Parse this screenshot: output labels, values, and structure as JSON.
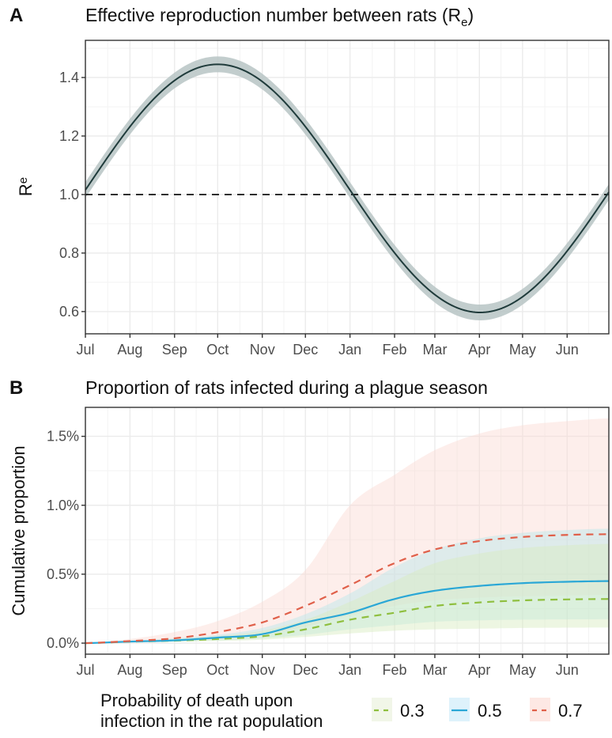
{
  "chart_data": [
    {
      "panel": "A",
      "type": "line",
      "title": "Effective reproduction number between rats (R",
      "title_subscript": "e",
      "title_suffix": ")",
      "xlabel": "",
      "ylabel": "R",
      "ylabel_subscript": "e",
      "x_categories": [
        "Jul",
        "Aug",
        "Sep",
        "Oct",
        "Nov",
        "Dec",
        "Jan",
        "Feb",
        "Mar",
        "Apr",
        "May",
        "Jun"
      ],
      "x_tick_days": [
        0,
        31,
        62,
        92,
        123,
        153,
        184,
        215,
        243,
        274,
        304,
        335
      ],
      "xlim_days": [
        0,
        364
      ],
      "yticks": [
        0.6,
        0.8,
        1.0,
        1.2,
        1.4
      ],
      "ytick_labels": [
        "0.6",
        "0.8",
        "1.0",
        "1.2",
        "1.4"
      ],
      "ylim": [
        0.524,
        1.527
      ],
      "grid": true,
      "reference_line": {
        "y": 1.0,
        "style": "dashed",
        "color": "#000000"
      },
      "series": [
        {
          "name": "Re",
          "model": "sinusoid",
          "mean": 1.021,
          "amplitude": 0.424,
          "peak_day": 92,
          "ribbon_halfwidth": 0.027,
          "line_color": "#1f3b3b",
          "ribbon_color": "#b7c4c4",
          "points": [
            {
              "x": 0,
              "y": 1.02
            },
            {
              "x": 31,
              "y": 1.23
            },
            {
              "x": 62,
              "y": 1.39
            },
            {
              "x": 92,
              "y": 1.445
            },
            {
              "x": 123,
              "y": 1.39
            },
            {
              "x": 153,
              "y": 1.23
            },
            {
              "x": 184,
              "y": 1.0
            },
            {
              "x": 215,
              "y": 0.8
            },
            {
              "x": 243,
              "y": 0.66
            },
            {
              "x": 274,
              "y": 0.597
            },
            {
              "x": 304,
              "y": 0.65
            },
            {
              "x": 335,
              "y": 0.8
            },
            {
              "x": 364,
              "y": 1.01
            }
          ]
        }
      ]
    },
    {
      "panel": "B",
      "type": "line",
      "title": "Proportion of rats infected during a plague season",
      "xlabel": "",
      "ylabel": "Cumulative proportion",
      "x_categories": [
        "Jul",
        "Aug",
        "Sep",
        "Oct",
        "Nov",
        "Dec",
        "Jan",
        "Feb",
        "Mar",
        "Apr",
        "May",
        "Jun"
      ],
      "x_tick_days": [
        0,
        31,
        62,
        92,
        123,
        153,
        184,
        215,
        243,
        274,
        304,
        335
      ],
      "xlim_days": [
        0,
        364
      ],
      "yticks": [
        0.0,
        0.5,
        1.0,
        1.5
      ],
      "ytick_labels": [
        "0.0%",
        "0.5%",
        "1.0%",
        "1.5%"
      ],
      "ylim": [
        -0.08,
        1.71
      ],
      "y_unit": "%",
      "grid": true,
      "legend": {
        "title_line1": "Probability of death upon",
        "title_line2": "infection in the rat population",
        "placement": "bottom"
      },
      "series": [
        {
          "name": "0.3",
          "line_style": "dashed",
          "line_color": "#8fbf3f",
          "ribbon_color": "#d6ebbf",
          "key_bg": "#f1f6e8",
          "x": [
            0,
            31,
            62,
            92,
            123,
            153,
            184,
            215,
            243,
            274,
            304,
            335,
            364
          ],
          "y": [
            0.0,
            0.01,
            0.018,
            0.03,
            0.05,
            0.1,
            0.17,
            0.22,
            0.27,
            0.295,
            0.31,
            0.317,
            0.32
          ],
          "lower": [
            0.0,
            0.006,
            0.01,
            0.015,
            0.025,
            0.045,
            0.07,
            0.09,
            0.1,
            0.105,
            0.11,
            0.112,
            0.113
          ],
          "upper": [
            0.0,
            0.015,
            0.03,
            0.05,
            0.09,
            0.17,
            0.3,
            0.45,
            0.58,
            0.65,
            0.69,
            0.71,
            0.72
          ]
        },
        {
          "name": "0.5",
          "line_style": "solid",
          "line_color": "#2aa7d6",
          "ribbon_color": "#b9e6ea",
          "key_bg": "#def2fb",
          "x": [
            0,
            31,
            62,
            92,
            123,
            153,
            184,
            215,
            243,
            274,
            304,
            335,
            364
          ],
          "y": [
            0.0,
            0.011,
            0.02,
            0.04,
            0.065,
            0.15,
            0.22,
            0.32,
            0.38,
            0.415,
            0.435,
            0.445,
            0.45
          ],
          "lower": [
            0.0,
            0.007,
            0.012,
            0.02,
            0.035,
            0.06,
            0.1,
            0.13,
            0.155,
            0.165,
            0.17,
            0.172,
            0.173
          ],
          "upper": [
            0.0,
            0.016,
            0.035,
            0.06,
            0.11,
            0.21,
            0.36,
            0.55,
            0.68,
            0.76,
            0.8,
            0.82,
            0.83
          ]
        },
        {
          "name": "0.7",
          "line_style": "dashed",
          "line_color": "#e0604a",
          "ribbon_color": "#fbd9d3",
          "key_bg": "#fde8e4",
          "x": [
            0,
            31,
            62,
            92,
            123,
            153,
            184,
            215,
            243,
            274,
            304,
            335,
            364
          ],
          "y": [
            0.0,
            0.015,
            0.035,
            0.08,
            0.15,
            0.27,
            0.42,
            0.58,
            0.68,
            0.74,
            0.77,
            0.785,
            0.79
          ],
          "lower": [
            0.0,
            0.008,
            0.016,
            0.03,
            0.06,
            0.12,
            0.2,
            0.27,
            0.31,
            0.33,
            0.34,
            0.345,
            0.35
          ],
          "upper": [
            0.0,
            0.03,
            0.08,
            0.16,
            0.3,
            0.53,
            1.0,
            1.22,
            1.4,
            1.52,
            1.58,
            1.61,
            1.63
          ]
        }
      ]
    }
  ]
}
